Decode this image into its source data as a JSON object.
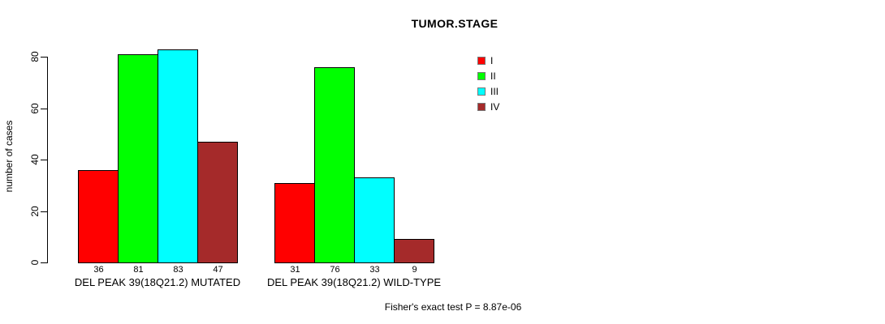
{
  "chart_data": {
    "type": "bar",
    "title": "TUMOR.STAGE",
    "ylabel": "number of cases",
    "xlabel": "",
    "categories": [
      "DEL PEAK 39(18Q21.2) MUTATED",
      "DEL PEAK 39(18Q21.2) WILD-TYPE"
    ],
    "series": [
      {
        "name": "I",
        "color": "#FF0000",
        "values": [
          36,
          31
        ]
      },
      {
        "name": "II",
        "color": "#00FF00",
        "values": [
          81,
          76
        ]
      },
      {
        "name": "III",
        "color": "#00FFFF",
        "values": [
          83,
          33
        ]
      },
      {
        "name": "IV",
        "color": "#A52A2A",
        "values": [
          47,
          9
        ]
      }
    ],
    "bar_value_labels": [
      [
        36,
        81,
        83,
        47
      ],
      [
        31,
        76,
        33,
        9
      ]
    ],
    "yticks": [
      0,
      20,
      40,
      60,
      80
    ],
    "ylim": [
      0,
      83
    ],
    "grid": false,
    "legend_position": "upper-right-inside",
    "footnote": "Fisher's exact test P = 8.87e-06"
  },
  "colors": {
    "background": "#FFFFFF",
    "axis": "#000000",
    "text": "#000000",
    "bar_border": "#000000"
  }
}
